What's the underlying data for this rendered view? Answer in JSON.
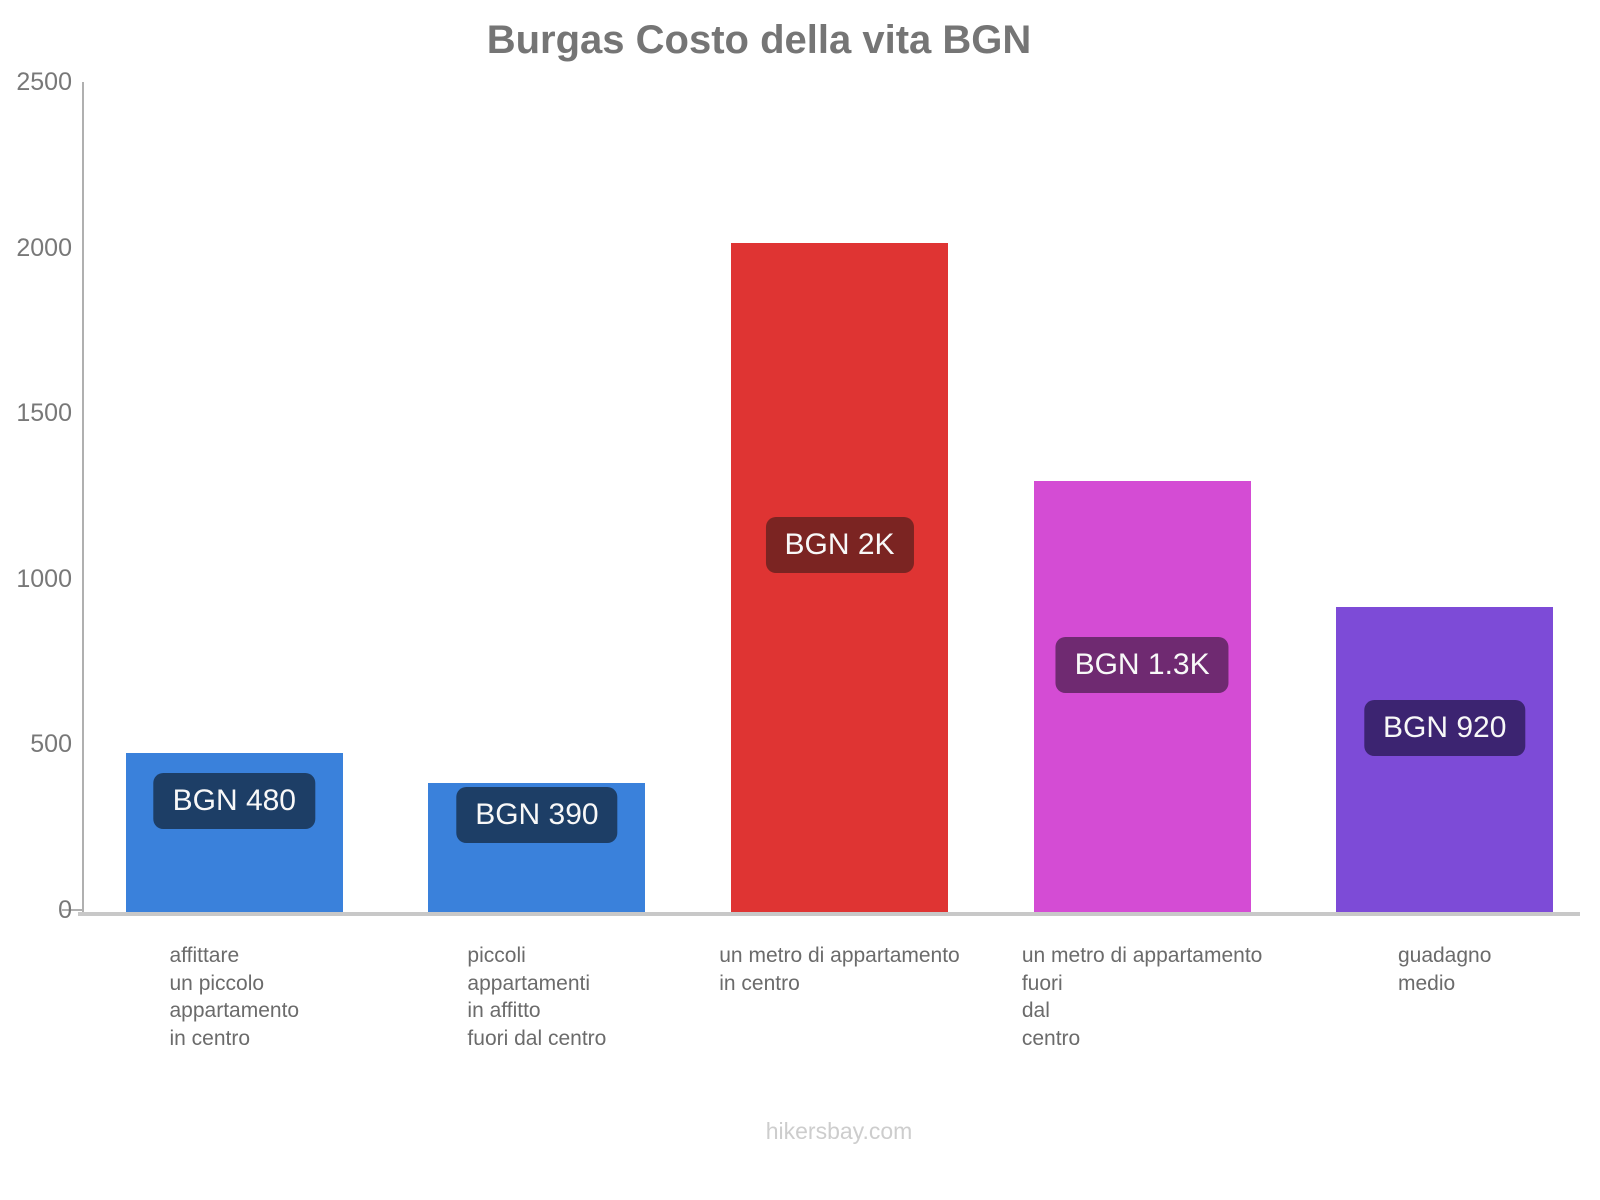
{
  "title": "Burgas Costo della vita BGN",
  "footer": "hikersbay.com",
  "colors": {
    "title_text": "#757575",
    "axis_line": "#b0b0b0",
    "baseline": "#c8c8c8",
    "tick_label": "#787878",
    "category_label": "#6b6b6b",
    "value_label_text": "#f8f8f8",
    "background": "#ffffff"
  },
  "chart_data": {
    "type": "bar",
    "title": "Burgas Costo della vita BGN",
    "categories": [
      "affittare un piccolo appartamento in centro",
      "piccoli appartamenti in affitto fuori dal centro",
      "un metro di appartamento in centro",
      "un metro di appartamento fuori dal centro",
      "guadagno medio"
    ],
    "category_lines": [
      [
        "affittare",
        "un piccolo",
        "appartamento",
        "in centro"
      ],
      [
        "piccoli",
        "appartamenti",
        "in affitto",
        "fuori dal centro"
      ],
      [
        "un metro di appartamento",
        "in centro"
      ],
      [
        "un metro di appartamento",
        "fuori",
        "dal",
        "centro"
      ],
      [
        "guadagno",
        "medio"
      ]
    ],
    "values": [
      480,
      390,
      2020,
      1300,
      920
    ],
    "value_labels": [
      "BGN 480",
      "BGN 390",
      "BGN 2K",
      "BGN 1.3K",
      "BGN 920"
    ],
    "bar_colors": [
      "#3a81db",
      "#3a81db",
      "#df3433",
      "#d44cd4",
      "#7d4bd7"
    ],
    "label_bg_colors": [
      "#1d3e66",
      "#1d3e66",
      "#7b2422",
      "#6f2a71",
      "#3c2471"
    ],
    "currency": "BGN",
    "xlabel": "",
    "ylabel": "",
    "ylim": [
      0,
      2500
    ],
    "y_ticks": [
      0,
      500,
      1000,
      1500,
      2000,
      2500
    ],
    "grid": false,
    "legend": false
  }
}
